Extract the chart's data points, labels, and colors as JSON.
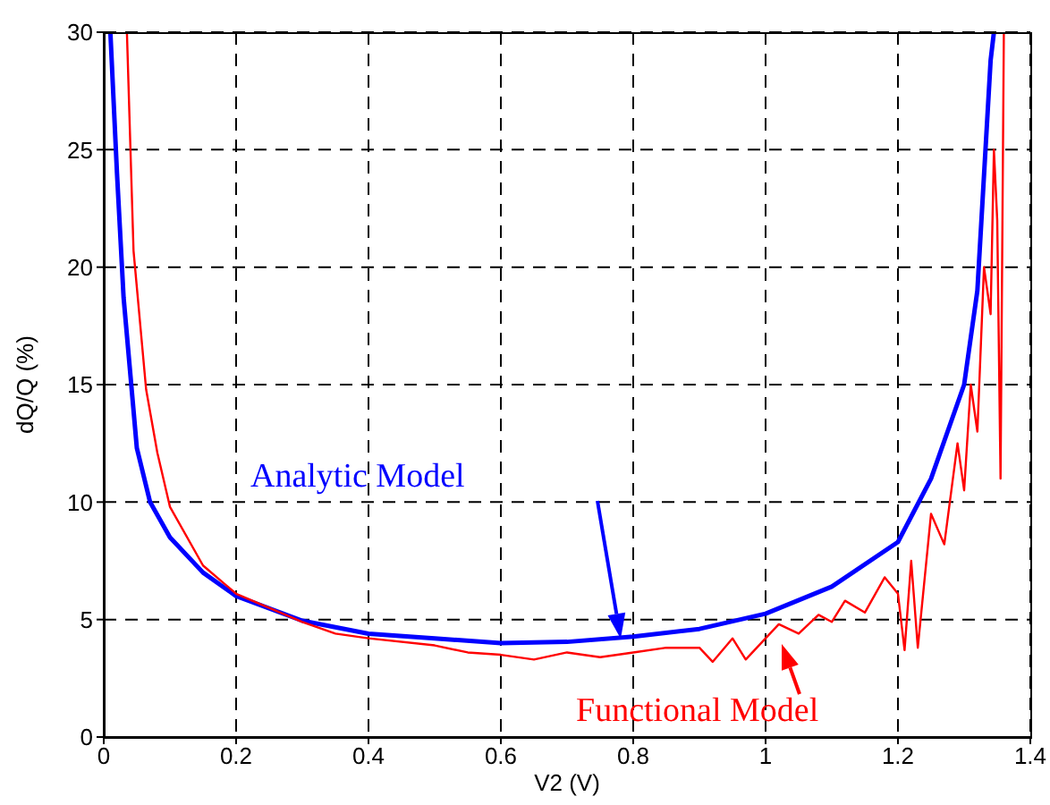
{
  "chart_data": {
    "type": "line",
    "xlabel": "V2 (V)",
    "ylabel": "dQ/Q (%)",
    "xlim": [
      0,
      1.4
    ],
    "xticks": [
      0,
      0.2,
      0.4,
      0.6,
      0.8,
      1,
      1.2,
      1.4
    ],
    "ylim": [
      0,
      30
    ],
    "yticks": [
      0,
      5,
      10,
      15,
      20,
      25,
      30
    ],
    "grid": true,
    "marker": "none",
    "line_style": "solid",
    "series": [
      {
        "name": "Analytic Model",
        "color": "#0000ff",
        "x": [
          0.01,
          0.02,
          0.03,
          0.05,
          0.07,
          0.1,
          0.15,
          0.2,
          0.3,
          0.4,
          0.5,
          0.6,
          0.7,
          0.8,
          0.9,
          1.0,
          1.1,
          1.2,
          1.25,
          1.3,
          1.32,
          1.34,
          1.345
        ],
        "values": [
          30,
          24,
          18.7,
          12.3,
          10,
          8.5,
          7,
          6,
          4.95,
          4.4,
          4.2,
          4.0,
          4.05,
          4.27,
          4.6,
          5.25,
          6.4,
          8.3,
          11,
          15,
          19,
          28.8,
          30
        ]
      },
      {
        "name": "Functional Model",
        "color": "#ff0000",
        "x": [
          0.035,
          0.045,
          0.064,
          0.081,
          0.1,
          0.15,
          0.2,
          0.3,
          0.35,
          0.4,
          0.5,
          0.55,
          0.6,
          0.65,
          0.7,
          0.75,
          0.8,
          0.85,
          0.9,
          0.92,
          0.95,
          0.97,
          1.0,
          1.02,
          1.05,
          1.08,
          1.1,
          1.12,
          1.15,
          1.18,
          1.2,
          1.21,
          1.22,
          1.23,
          1.25,
          1.27,
          1.29,
          1.3,
          1.31,
          1.32,
          1.33,
          1.34,
          1.345,
          1.35,
          1.355,
          1.36
        ],
        "values": [
          30,
          20.7,
          14.8,
          12.1,
          9.8,
          7.3,
          6.1,
          4.9,
          4.4,
          4.2,
          3.9,
          3.6,
          3.5,
          3.3,
          3.6,
          3.4,
          3.6,
          3.8,
          3.8,
          3.2,
          4.2,
          3.3,
          4.2,
          4.8,
          4.4,
          5.2,
          4.9,
          5.8,
          5.3,
          6.8,
          6.1,
          3.7,
          7.5,
          3.8,
          9.5,
          8.2,
          12.5,
          10.5,
          15,
          13,
          20,
          18,
          25,
          22,
          11,
          30
        ]
      }
    ]
  }
}
